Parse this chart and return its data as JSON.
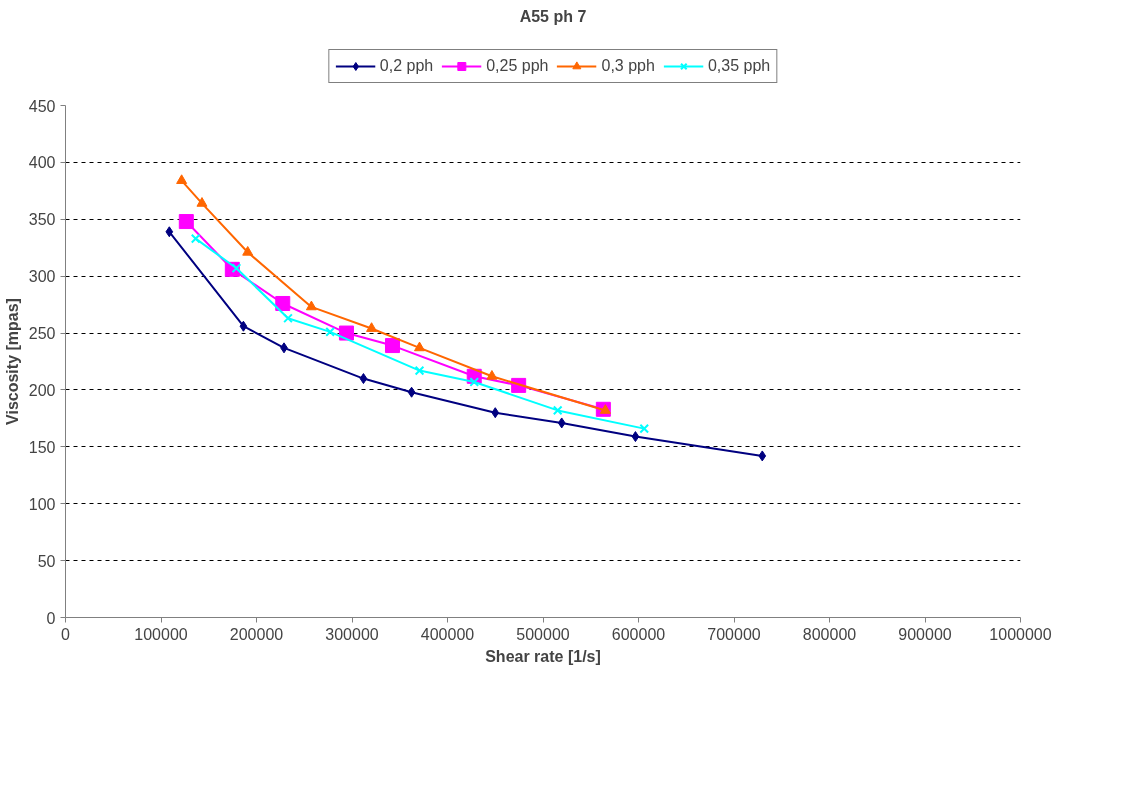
{
  "chart_data": {
    "type": "line",
    "title": "A55 ph 7",
    "xlabel": "Shear rate [1/s]",
    "ylabel": "Viscosity [mpas]",
    "xlim": [
      0,
      1000000
    ],
    "xticks": [
      0,
      100000,
      200000,
      300000,
      400000,
      500000,
      600000,
      700000,
      800000,
      900000,
      1000000
    ],
    "ylim": [
      0,
      450
    ],
    "yticks": [
      0,
      50,
      100,
      150,
      200,
      250,
      300,
      350,
      400,
      450
    ],
    "grid": "y",
    "legend": "top",
    "line_style": "solid",
    "series": [
      {
        "name": "0,2 pph",
        "color": "#000080",
        "marker": "diamond",
        "x": [
          108700,
          186300,
          228800,
          312000,
          362400,
          450000,
          519600,
          596800,
          729600
        ],
        "values": [
          339,
          256,
          237,
          210,
          198,
          180,
          171,
          159,
          142
        ]
      },
      {
        "name": "0,25 pph",
        "color": "#ff00ff",
        "marker": "square",
        "x": [
          126500,
          174700,
          227500,
          294200,
          342400,
          428000,
          474500,
          563200
        ],
        "values": [
          348,
          306,
          276,
          250,
          239,
          212,
          204,
          183
        ]
      },
      {
        "name": "0,3 pph",
        "color": "#ff6600",
        "marker": "triangle",
        "x": [
          121600,
          142900,
          190800,
          257500,
          320500,
          370700,
          446500,
          565300
        ],
        "values": [
          384,
          364,
          321,
          273,
          254,
          237,
          212,
          182
        ]
      },
      {
        "name": "0,35 pph",
        "color": "#00ffff",
        "marker": "cross",
        "x": [
          136300,
          179000,
          233000,
          277100,
          370700,
          428000,
          515400,
          606000
        ],
        "values": [
          333,
          307,
          263,
          251,
          217,
          207,
          182,
          166
        ]
      }
    ]
  }
}
